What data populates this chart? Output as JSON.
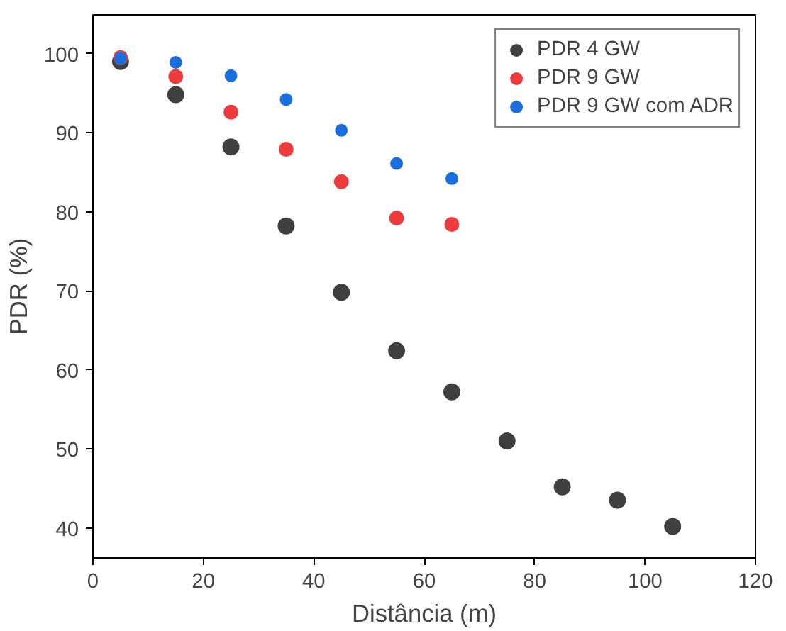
{
  "chart_data": {
    "type": "scatter",
    "xlabel": "Distância (m)",
    "ylabel": "PDR (%)",
    "xlim": [
      0,
      120
    ],
    "ylim": [
      36.2,
      104.9
    ],
    "xticks": [
      0,
      20,
      40,
      60,
      80,
      100,
      120
    ],
    "yticks": [
      40,
      50,
      60,
      70,
      80,
      90,
      100
    ],
    "grid": false,
    "legend": "top right",
    "marker": "circle",
    "series": [
      {
        "name": "PDR 4 GW",
        "color": "#404040",
        "x": [
          5,
          15,
          25,
          35,
          45,
          55,
          65,
          75,
          85,
          95,
          105
        ],
        "values": [
          99.0,
          94.8,
          88.2,
          78.2,
          69.8,
          62.4,
          57.2,
          51.0,
          45.2,
          43.5,
          40.2
        ]
      },
      {
        "name": "PDR 9 GW",
        "color": "#ee3b3b",
        "x": [
          5,
          15,
          25,
          35,
          45,
          55,
          65
        ],
        "values": [
          99.5,
          97.1,
          92.6,
          87.9,
          83.8,
          79.2,
          78.4
        ]
      },
      {
        "name": "PDR 9 GW com ADR",
        "color": "#1a6fdf",
        "x": [
          5,
          15,
          25,
          35,
          45,
          55,
          65
        ],
        "values": [
          99.4,
          98.9,
          97.2,
          94.2,
          90.3,
          86.1,
          84.2
        ]
      }
    ]
  }
}
